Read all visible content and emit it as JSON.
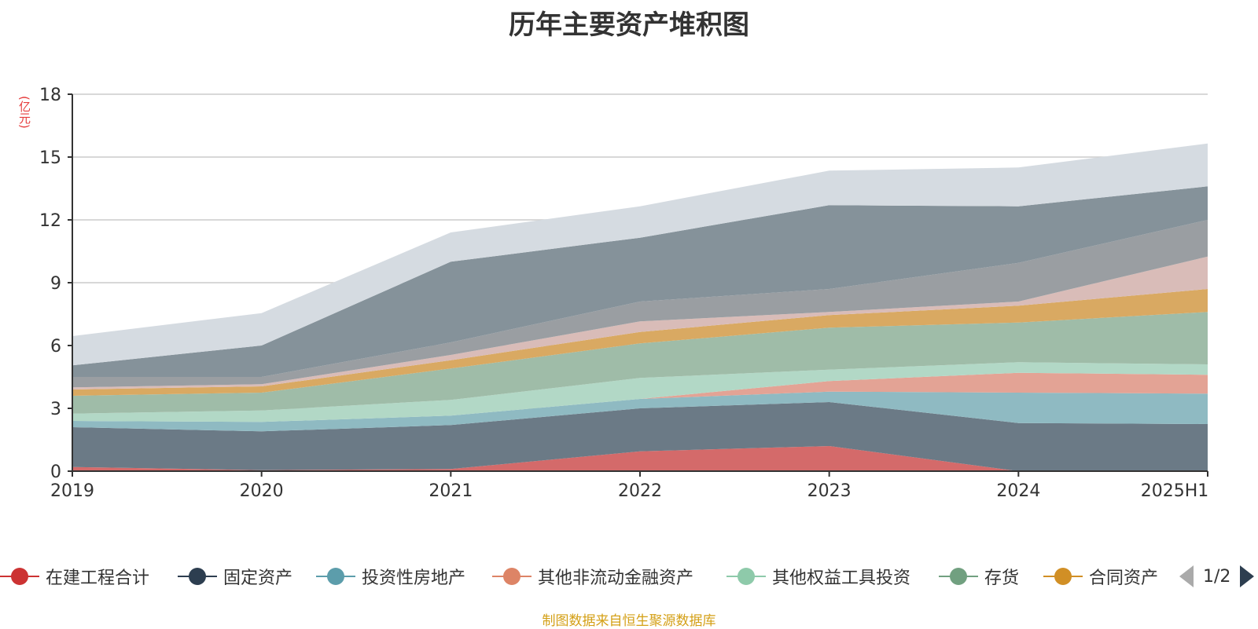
{
  "chart_data": {
    "type": "area",
    "title": "历年主要资产堆积图",
    "ylabel": "(亿元)",
    "x": [
      "2019",
      "2020",
      "2021",
      "2022",
      "2023",
      "2024",
      "2025H1"
    ],
    "ylim": [
      0,
      18
    ],
    "yticks": [
      0,
      3,
      6,
      9,
      12,
      15,
      18
    ],
    "stacked": true,
    "grid": true,
    "series": [
      {
        "name": "在建工程合计",
        "color": "#d46a6a",
        "values": [
          0.2,
          0.05,
          0.1,
          0.95,
          1.2,
          0.0,
          0.0
        ]
      },
      {
        "name": "固定资产",
        "color": "#6b7a86",
        "values": [
          1.9,
          1.85,
          2.1,
          2.05,
          2.1,
          2.3,
          2.25
        ]
      },
      {
        "name": "投资性房地产",
        "color": "#8fbac2",
        "values": [
          0.3,
          0.45,
          0.45,
          0.45,
          0.5,
          1.45,
          1.45
        ]
      },
      {
        "name": "其他非流动金融资产",
        "color": "#e3a395",
        "values": [
          0.0,
          0.0,
          0.0,
          0.0,
          0.5,
          0.95,
          0.9
        ]
      },
      {
        "name": "其他权益工具投资",
        "color": "#b2d8c6",
        "values": [
          0.35,
          0.55,
          0.75,
          1.0,
          0.55,
          0.5,
          0.5
        ]
      },
      {
        "name": "存货",
        "color": "#9fbca8",
        "values": [
          0.85,
          0.85,
          1.5,
          1.65,
          2.0,
          1.9,
          2.5
        ]
      },
      {
        "name": "合同资产",
        "color": "#d9a962",
        "values": [
          0.3,
          0.3,
          0.4,
          0.55,
          0.6,
          0.8,
          1.1
        ]
      },
      {
        "color": "#d9bcb8",
        "values": [
          0.1,
          0.1,
          0.25,
          0.5,
          0.15,
          0.2,
          1.55
        ]
      },
      {
        "color": "#9a9ea2",
        "values": [
          0.5,
          0.35,
          0.6,
          0.95,
          1.1,
          1.85,
          1.75
        ]
      },
      {
        "color": "#85929a",
        "values": [
          0.55,
          1.5,
          3.85,
          3.05,
          4.0,
          2.7,
          1.6
        ]
      },
      {
        "color": "#d5dbe1",
        "values": [
          1.4,
          1.55,
          1.4,
          1.5,
          1.65,
          1.85,
          2.05
        ]
      }
    ]
  },
  "legend": {
    "items": [
      {
        "label": "在建工程合计",
        "color": "#cc3333"
      },
      {
        "label": "固定资产",
        "color": "#2d3e50"
      },
      {
        "label": "投资性房地产",
        "color": "#5c9dab"
      },
      {
        "label": "其他非流动金融资产",
        "color": "#dd8466"
      },
      {
        "label": "其他权益工具投资",
        "color": "#8ecaaa"
      },
      {
        "label": "存货",
        "color": "#71a080"
      },
      {
        "label": "合同资产",
        "color": "#d18f25"
      }
    ],
    "page": "1/2"
  },
  "source": "制图数据来自恒生聚源数据库"
}
